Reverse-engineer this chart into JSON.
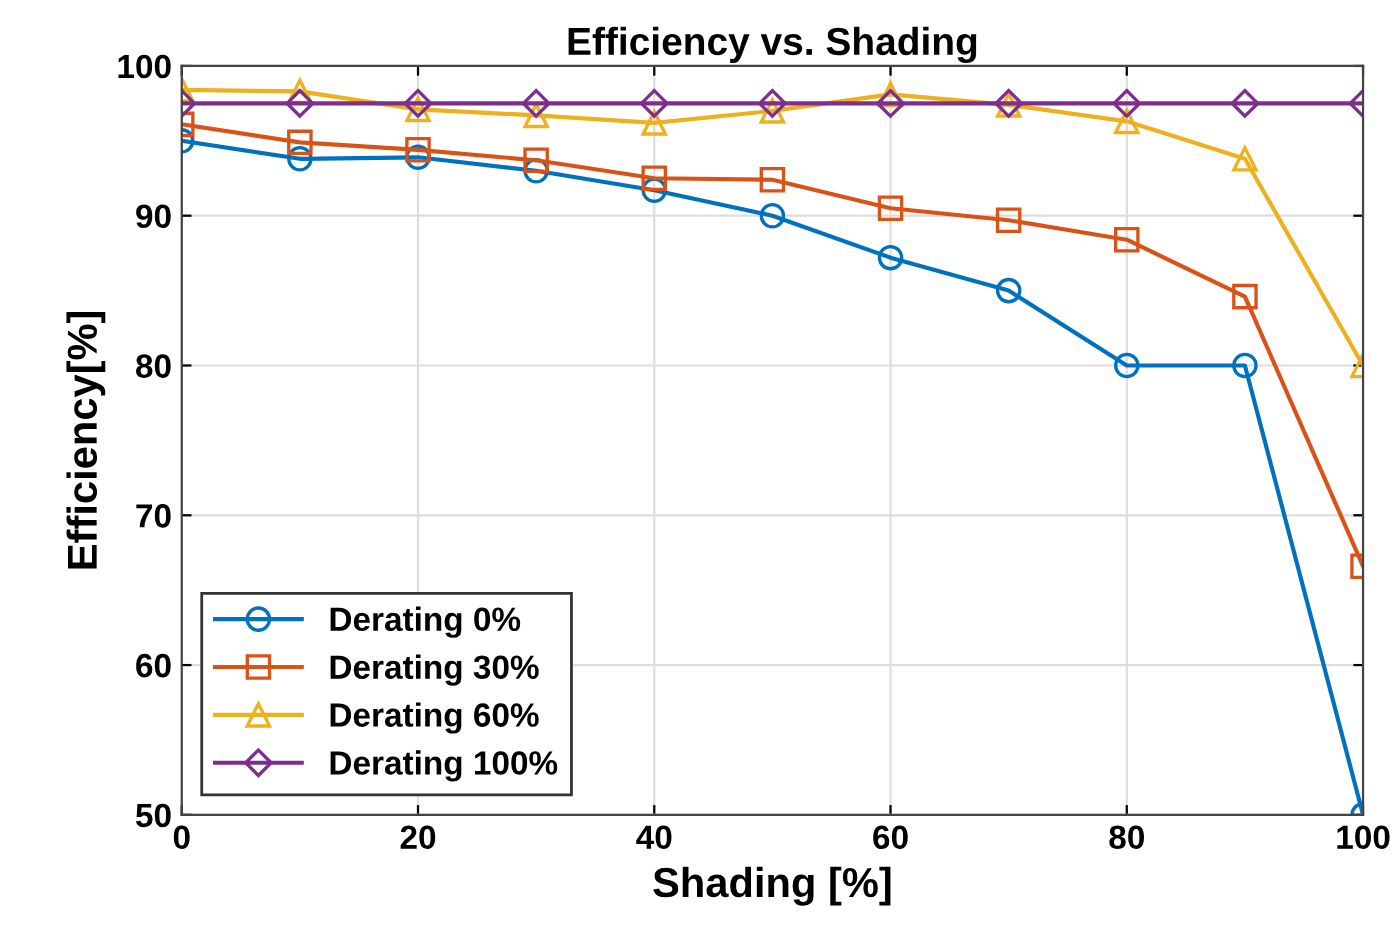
{
  "chart_data": {
    "type": "line",
    "title": "Efficiency vs. Shading",
    "xlabel": "Shading [%]",
    "ylabel": "Efficiency[%]",
    "x": [
      0,
      10,
      20,
      30,
      40,
      50,
      60,
      70,
      80,
      90,
      100
    ],
    "series": [
      {
        "name": "Derating 0%",
        "color": "#0072bd",
        "marker": "circle",
        "values": [
          95.0,
          93.8,
          93.9,
          93.0,
          91.7,
          90.0,
          87.2,
          85.0,
          80.0,
          80.0,
          50.0
        ]
      },
      {
        "name": "Derating 30%",
        "color": "#d95319",
        "marker": "square",
        "values": [
          96.1,
          94.9,
          94.4,
          93.7,
          92.5,
          92.4,
          90.5,
          89.7,
          88.4,
          84.6,
          66.6
        ]
      },
      {
        "name": "Derating 60%",
        "color": "#edb120",
        "marker": "triangle",
        "values": [
          98.4,
          98.3,
          97.1,
          96.7,
          96.2,
          97.0,
          98.1,
          97.4,
          96.3,
          93.8,
          80.0
        ]
      },
      {
        "name": "Derating 100%",
        "color": "#7e2f8e",
        "marker": "diamond",
        "values": [
          97.5,
          97.5,
          97.5,
          97.5,
          97.5,
          97.5,
          97.5,
          97.5,
          97.5,
          97.5,
          97.5
        ]
      }
    ],
    "xlim": [
      0,
      100
    ],
    "ylim": [
      50,
      100
    ],
    "xticks": [
      0,
      20,
      40,
      60,
      80,
      100
    ],
    "yticks": [
      50,
      60,
      70,
      80,
      90,
      100
    ],
    "grid": true,
    "legend": "bottom left"
  }
}
